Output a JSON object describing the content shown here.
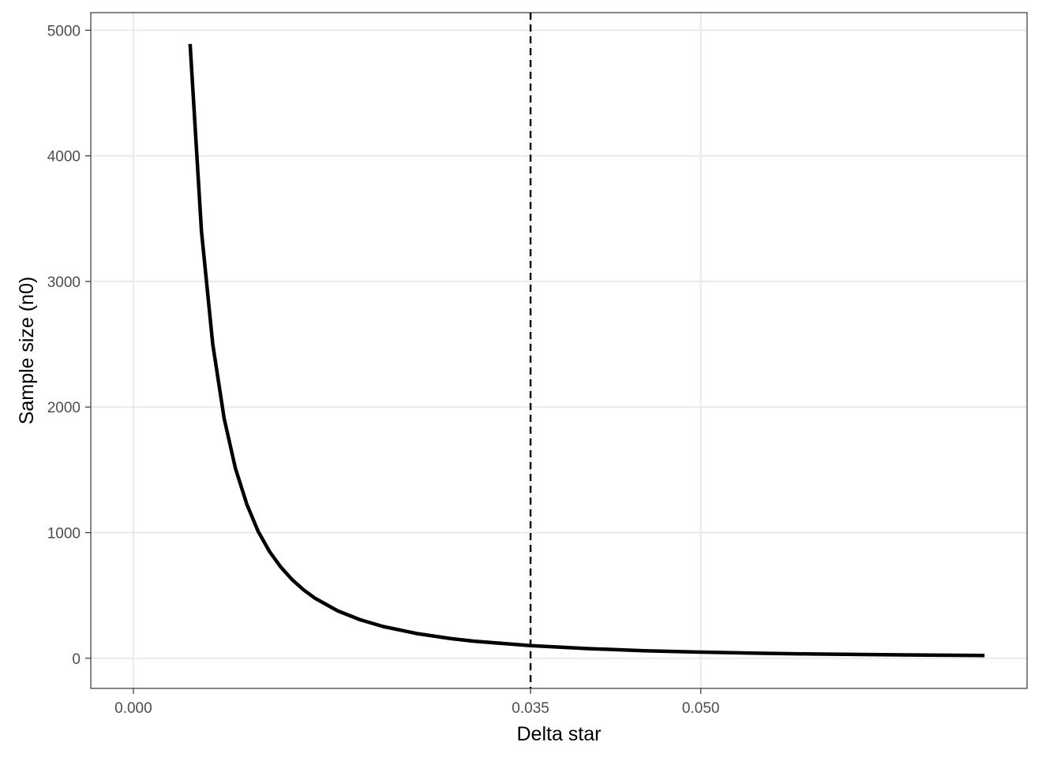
{
  "chart_data": {
    "type": "line",
    "title": "",
    "xlabel": "Delta star",
    "ylabel": "Sample size (n0)",
    "xlim": [
      -0.00375,
      0.07875
    ],
    "ylim": [
      -240,
      5140
    ],
    "x_ticks": [
      0.0,
      0.035,
      0.05
    ],
    "x_tick_labels": [
      "0.000",
      "0.035",
      "0.050"
    ],
    "y_ticks": [
      0,
      1000,
      2000,
      3000,
      4000,
      5000
    ],
    "y_tick_labels": [
      "0",
      "1000",
      "2000",
      "3000",
      "4000",
      "5000"
    ],
    "grid": true,
    "reference_line": {
      "orientation": "vertical",
      "x": 0.035,
      "style": "dashed",
      "color": "#000000"
    },
    "series": [
      {
        "color": "#000000",
        "x": [
          0.005,
          0.006,
          0.007,
          0.008,
          0.009,
          0.01,
          0.011,
          0.012,
          0.013,
          0.014,
          0.015,
          0.016,
          0.018,
          0.02,
          0.022,
          0.025,
          0.028,
          0.03,
          0.035,
          0.04,
          0.045,
          0.05,
          0.055,
          0.06,
          0.065,
          0.07,
          0.075
        ],
        "values": [
          4890,
          3400,
          2500,
          1910,
          1510,
          1225,
          1010,
          850,
          725,
          625,
          545,
          478,
          378,
          306,
          253,
          196,
          156,
          136,
          100,
          77,
          60,
          49,
          40,
          34,
          29,
          25,
          22
        ]
      }
    ]
  }
}
